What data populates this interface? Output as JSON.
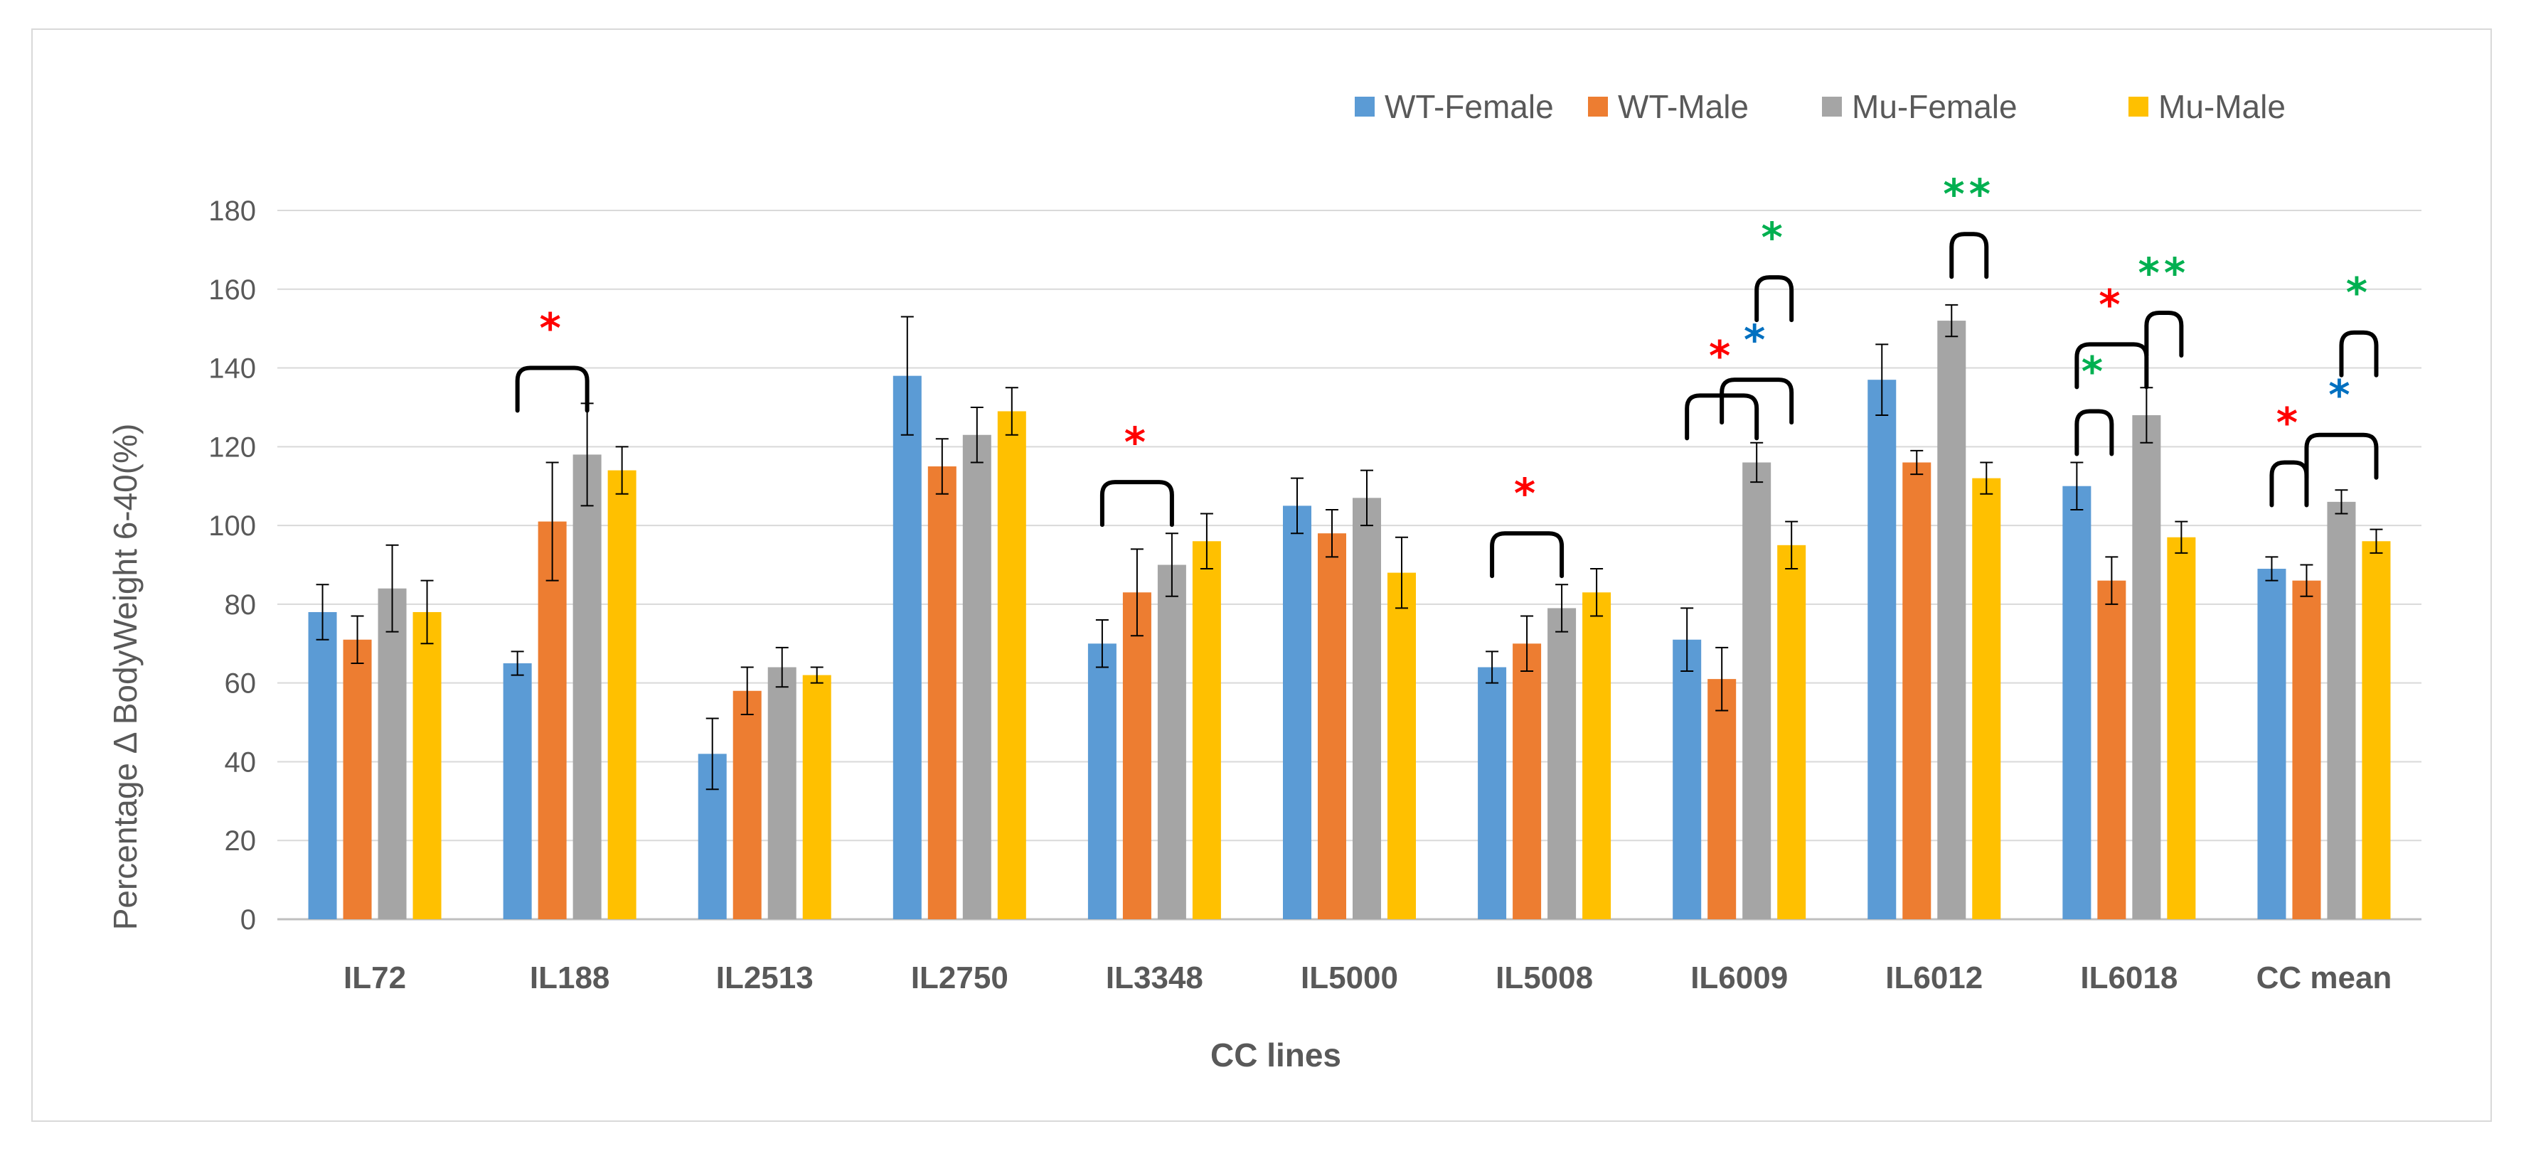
{
  "chart_data": {
    "type": "bar",
    "title": "",
    "xlabel": "CC lines",
    "ylabel": "Percentage Δ BodyWeight 6-40(%)",
    "ylim": [
      0,
      180
    ],
    "yticks": [
      0,
      20,
      40,
      60,
      80,
      100,
      120,
      140,
      160,
      180
    ],
    "grid": "horizontal",
    "legend_position": "top-right",
    "categories": [
      "IL72",
      "IL188",
      "IL2513",
      "IL2750",
      "IL3348",
      "IL5000",
      "IL5008",
      "IL6009",
      "IL6012",
      "IL6018",
      "CC mean"
    ],
    "series": [
      {
        "name": "WT-Female",
        "color": "#5B9BD5",
        "values": [
          78,
          65,
          42,
          138,
          70,
          105,
          64,
          71,
          137,
          110,
          89
        ],
        "errors": [
          7,
          3,
          9,
          15,
          6,
          7,
          4,
          8,
          9,
          6,
          3
        ]
      },
      {
        "name": "WT-Male",
        "color": "#ED7D31",
        "values": [
          71,
          101,
          58,
          115,
          83,
          98,
          70,
          61,
          116,
          86,
          86
        ],
        "errors": [
          6,
          15,
          6,
          7,
          11,
          6,
          7,
          8,
          3,
          6,
          4
        ]
      },
      {
        "name": "Mu-Female",
        "color": "#A5A5A5",
        "values": [
          84,
          118,
          64,
          123,
          90,
          107,
          79,
          116,
          152,
          128,
          106
        ],
        "errors": [
          11,
          13,
          5,
          7,
          8,
          7,
          6,
          5,
          4,
          7,
          3
        ]
      },
      {
        "name": "Mu-Male",
        "color": "#FFC000",
        "values": [
          78,
          114,
          62,
          129,
          96,
          88,
          83,
          95,
          112,
          97,
          96
        ],
        "errors": [
          8,
          6,
          2,
          6,
          7,
          9,
          6,
          6,
          4,
          4,
          3
        ]
      }
    ],
    "significance": [
      {
        "category": "IL188",
        "from": 0,
        "to": 2,
        "level": 140,
        "marks": "*",
        "color": "#FF0000"
      },
      {
        "category": "IL3348",
        "from": 0,
        "to": 2,
        "level": 111,
        "marks": "*",
        "color": "#FF0000"
      },
      {
        "category": "IL5008",
        "from": 0,
        "to": 2,
        "level": 98,
        "marks": "*",
        "color": "#FF0000"
      },
      {
        "category": "IL6009",
        "from": 0,
        "to": 2,
        "level": 133,
        "marks": "*",
        "color": "#FF0000"
      },
      {
        "category": "IL6009",
        "from": 1,
        "to": 3,
        "level": 137,
        "marks": "*",
        "color": "#0070C0"
      },
      {
        "category": "IL6009",
        "from": 2,
        "to": 3,
        "level": 163,
        "marks": "*",
        "color": "#00B050"
      },
      {
        "category": "IL6012",
        "from": 2,
        "to": 3,
        "level": 174,
        "marks": "**",
        "color": "#00B050"
      },
      {
        "category": "IL6018",
        "from": 0,
        "to": 2,
        "level": 146,
        "marks": "*",
        "color": "#FF0000"
      },
      {
        "category": "IL6018",
        "from": 2,
        "to": 3,
        "level": 154,
        "marks": "**",
        "color": "#00B050"
      },
      {
        "category": "IL6018",
        "from": 0,
        "to": 1,
        "level": 129,
        "marks": "*",
        "color": "#00B050"
      },
      {
        "category": "CC mean",
        "from": 0,
        "to": 1,
        "level": 116,
        "marks": "*",
        "color": "#FF0000"
      },
      {
        "category": "CC mean",
        "from": 1,
        "to": 3,
        "level": 123,
        "marks": "*",
        "color": "#0070C0"
      },
      {
        "category": "CC mean",
        "from": 2,
        "to": 3,
        "level": 149,
        "marks": "*",
        "color": "#00B050"
      }
    ]
  }
}
